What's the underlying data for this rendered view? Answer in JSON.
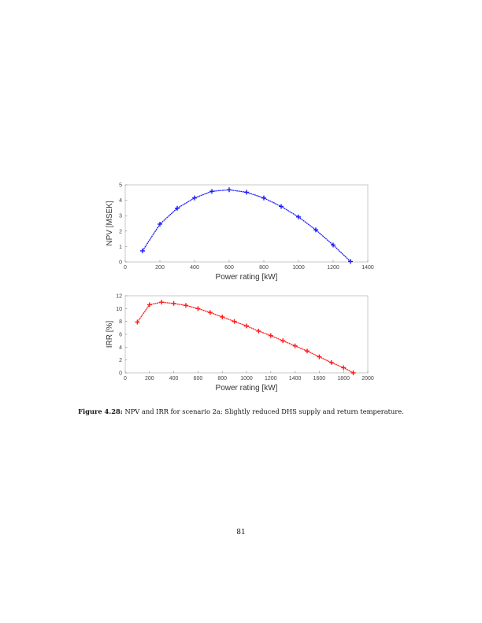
{
  "chart_data": [
    {
      "type": "line",
      "title": "",
      "xlabel": "Power rating [kW]",
      "ylabel": "NPV [MSEK]",
      "xlim": [
        0,
        1400
      ],
      "ylim": [
        0,
        5
      ],
      "xticks": [
        0,
        200,
        400,
        600,
        800,
        1000,
        1200,
        1400
      ],
      "yticks": [
        0,
        1,
        2,
        3,
        4,
        5
      ],
      "color": "#1a1aff",
      "marker": "+",
      "x": [
        100,
        200,
        300,
        400,
        500,
        600,
        700,
        800,
        900,
        1000,
        1100,
        1200,
        1300
      ],
      "y": [
        0.72,
        2.45,
        3.48,
        4.15,
        4.58,
        4.68,
        4.52,
        4.15,
        3.6,
        2.92,
        2.08,
        1.1,
        0.03
      ]
    },
    {
      "type": "line",
      "title": "",
      "xlabel": "Power rating [kW]",
      "ylabel": "IRR [%]",
      "xlim": [
        0,
        2000
      ],
      "ylim": [
        0,
        12
      ],
      "xticks": [
        0,
        200,
        400,
        600,
        800,
        1000,
        1200,
        1400,
        1600,
        1800,
        2000
      ],
      "yticks": [
        0,
        2,
        4,
        6,
        8,
        10,
        12
      ],
      "color": "#ff1a1a",
      "marker": "+",
      "x": [
        100,
        200,
        300,
        400,
        500,
        600,
        700,
        800,
        900,
        1000,
        1100,
        1200,
        1300,
        1400,
        1500,
        1600,
        1700,
        1800,
        1880
      ],
      "y": [
        7.9,
        10.6,
        11.0,
        10.8,
        10.5,
        10.0,
        9.4,
        8.7,
        8.0,
        7.3,
        6.5,
        5.8,
        5.0,
        4.2,
        3.4,
        2.5,
        1.6,
        0.8,
        0.0
      ]
    }
  ],
  "caption": {
    "label": "Figure 4.28:",
    "text": "NPV and IRR for scenario 2a: Slightly reduced DHS supply and return temperature."
  },
  "page_number": "81"
}
